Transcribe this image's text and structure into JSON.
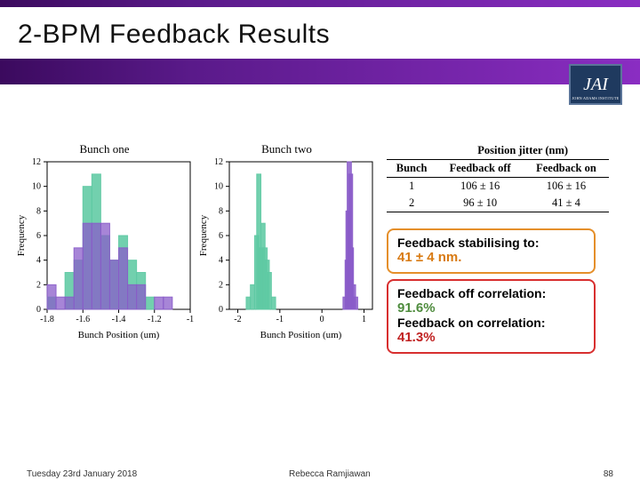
{
  "title": "2-BPM Feedback Results",
  "logo": "JAI",
  "chart1": {
    "title": "Bunch one",
    "xlabel": "Bunch Position (um)",
    "ylabel": "Frequency",
    "xlim": [
      -1.8,
      -1.0
    ],
    "xticks": [
      -1.8,
      -1.6,
      -1.4,
      -1.2,
      -1.0
    ],
    "ylim": [
      0,
      12
    ],
    "yticks": [
      0,
      2,
      4,
      6,
      8,
      10,
      12
    ],
    "bin_width": 0.05,
    "series": [
      {
        "color": "#5ec9a3",
        "alpha": 0.88,
        "bins": [
          [
            -1.8,
            1
          ],
          [
            -1.7,
            3
          ],
          [
            -1.65,
            4
          ],
          [
            -1.6,
            10
          ],
          [
            -1.55,
            11
          ],
          [
            -1.5,
            6
          ],
          [
            -1.45,
            4
          ],
          [
            -1.4,
            6
          ],
          [
            -1.35,
            4
          ],
          [
            -1.3,
            3
          ],
          [
            -1.25,
            1
          ]
        ]
      },
      {
        "color": "#8a5cc9",
        "alpha": 0.75,
        "bins": [
          [
            -1.8,
            2
          ],
          [
            -1.75,
            1
          ],
          [
            -1.7,
            1
          ],
          [
            -1.65,
            5
          ],
          [
            -1.6,
            7
          ],
          [
            -1.55,
            7
          ],
          [
            -1.5,
            7
          ],
          [
            -1.45,
            4
          ],
          [
            -1.4,
            5
          ],
          [
            -1.35,
            2
          ],
          [
            -1.3,
            2
          ],
          [
            -1.2,
            1
          ],
          [
            -1.15,
            1
          ]
        ]
      }
    ],
    "bg": "#ffffff",
    "axis_fontsize": 10
  },
  "chart2": {
    "title": "Bunch two",
    "xlabel": "Bunch Position (um)",
    "ylabel": "Frequency",
    "xlim": [
      -2.2,
      1.2
    ],
    "xticks": [
      -2,
      -1,
      0,
      1
    ],
    "ylim": [
      0,
      12
    ],
    "yticks": [
      0,
      2,
      4,
      6,
      8,
      10,
      12
    ],
    "bin_width": 0.1,
    "series": [
      {
        "color": "#5ec9a3",
        "alpha": 0.88,
        "bins": [
          [
            -1.8,
            1
          ],
          [
            -1.7,
            2
          ],
          [
            -1.6,
            6
          ],
          [
            -1.55,
            11
          ],
          [
            -1.5,
            5
          ],
          [
            -1.45,
            7
          ],
          [
            -1.4,
            5
          ],
          [
            -1.35,
            4
          ],
          [
            -1.3,
            3
          ],
          [
            -1.2,
            1
          ]
        ]
      },
      {
        "color": "#8a5cc9",
        "alpha": 0.85,
        "bins": [
          [
            0.5,
            1
          ],
          [
            0.55,
            4
          ],
          [
            0.57,
            8
          ],
          [
            0.6,
            12
          ],
          [
            0.63,
            11
          ],
          [
            0.65,
            5
          ],
          [
            0.7,
            2
          ],
          [
            0.75,
            1
          ]
        ]
      }
    ],
    "bg": "#ffffff",
    "axis_fontsize": 10
  },
  "table": {
    "super": "Position jitter (nm)",
    "cols": [
      "Bunch",
      "Feedback off",
      "Feedback on"
    ],
    "rows": [
      [
        "1",
        "106 ± 16",
        "106 ± 16"
      ],
      [
        "2",
        "96 ± 10",
        "41 ± 4"
      ]
    ]
  },
  "info": {
    "stab_label": "Feedback stabilising to:",
    "stab_value": "41 ± 4 nm.",
    "offcorr_label": "Feedback off correlation:",
    "offcorr_value": "91.6%",
    "oncorr_label": "Feedback on correlation:",
    "oncorr_value": "41.3%"
  },
  "footer": {
    "date": "Tuesday 23rd January 2018",
    "author": "Rebecca Ramjiawan",
    "page": "88"
  }
}
